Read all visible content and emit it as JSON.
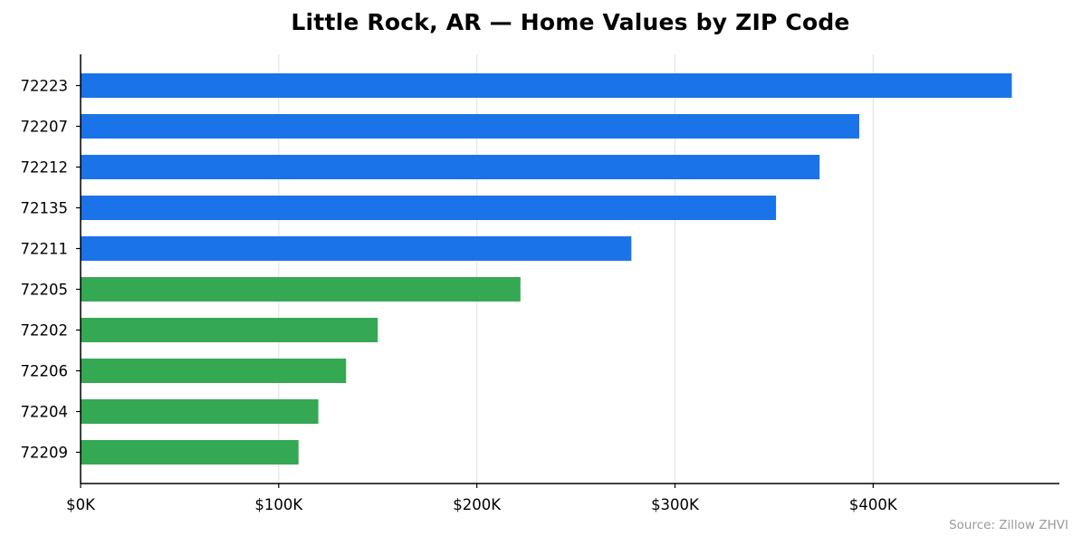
{
  "chart_data": {
    "type": "bar",
    "orientation": "horizontal",
    "title": "Little Rock, AR — Home Values by ZIP Code",
    "xlabel": "",
    "ylabel": "",
    "categories": [
      "72223",
      "72207",
      "72212",
      "72135",
      "72211",
      "72205",
      "72202",
      "72206",
      "72204",
      "72209"
    ],
    "values": [
      470000,
      393000,
      373000,
      351000,
      278000,
      222000,
      150000,
      134000,
      120000,
      110000
    ],
    "bar_colors": [
      "#1a73e8",
      "#1a73e8",
      "#1a73e8",
      "#1a73e8",
      "#1a73e8",
      "#34a853",
      "#34a853",
      "#34a853",
      "#34a853",
      "#34a853"
    ],
    "xlim": [
      0,
      494000
    ],
    "xticks": [
      0,
      100000,
      200000,
      300000,
      400000
    ],
    "xtick_labels": [
      "$0K",
      "$100K",
      "$200K",
      "$300K",
      "$400K"
    ],
    "grid": "vertical",
    "grid_color": "#e5e5e5",
    "axis_color": "#000000"
  },
  "source_note": "Source: Zillow ZHVI"
}
